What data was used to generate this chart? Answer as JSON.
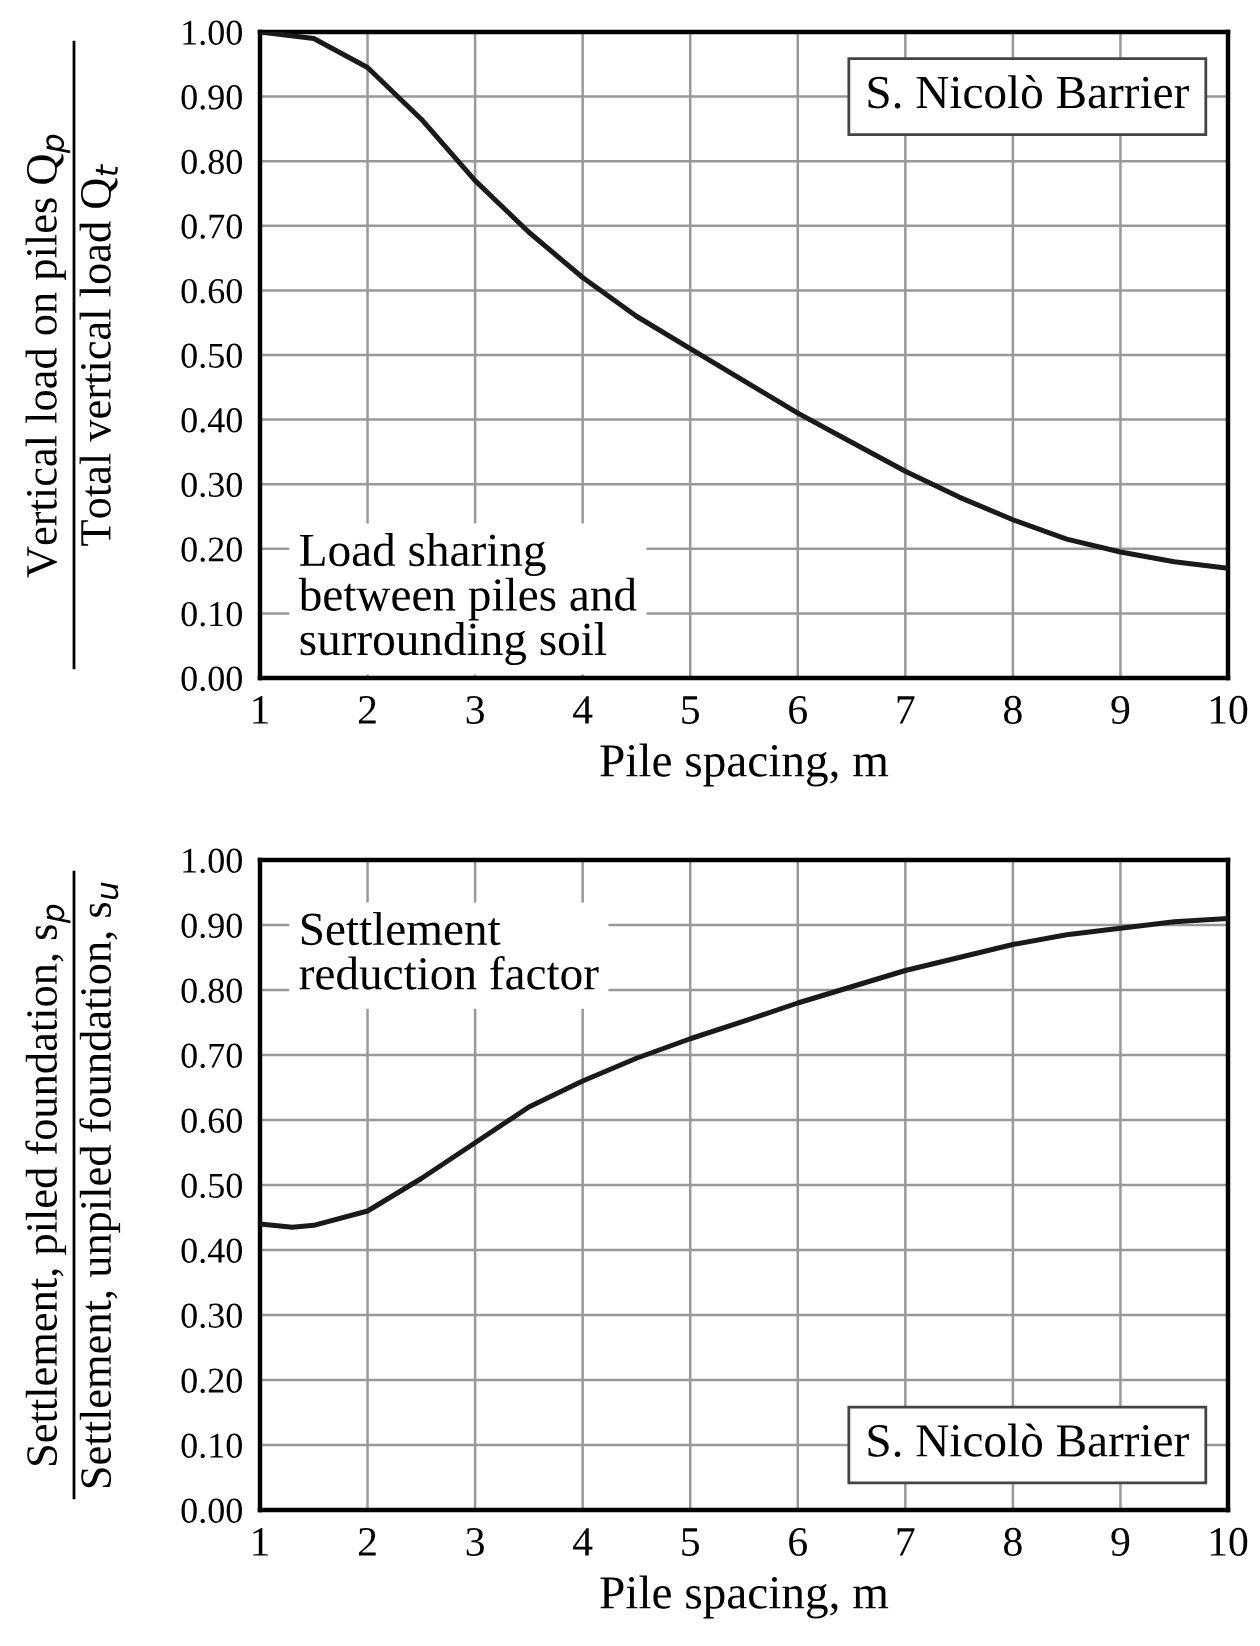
{
  "chart_data": [
    {
      "type": "line",
      "xlabel": "Pile spacing, m",
      "ylabel": "Vertical load on piles Q$_{p}$\nTotal vertical load Q$_{t}$",
      "annotations": [
        "S. Nicolò Barrier",
        "Load sharing\nbetween piles and\nsurrounding soil"
      ],
      "series": [
        {
          "color": "#1a1a1a",
          "x": [
            1,
            1.5,
            2,
            2.5,
            3,
            3.5,
            4,
            4.5,
            5,
            5.5,
            6,
            6.5,
            7,
            7.5,
            8,
            8.5,
            9,
            9.5,
            10
          ],
          "values": [
            1.0,
            0.99,
            0.945,
            0.865,
            0.77,
            0.69,
            0.62,
            0.56,
            0.51,
            0.46,
            0.41,
            0.365,
            0.32,
            0.28,
            0.245,
            0.215,
            0.195,
            0.18,
            0.17
          ]
        }
      ],
      "xlim": [
        1,
        10
      ],
      "xticks": [
        1,
        2,
        3,
        4,
        5,
        6,
        7,
        8,
        9,
        10
      ],
      "ylim": [
        0,
        1
      ],
      "yticks": [
        {
          "value": 0,
          "label": "0.00"
        },
        {
          "value": 0.1,
          "label": "0.10"
        },
        {
          "value": 0.2,
          "label": "0.20"
        },
        {
          "value": 0.3,
          "label": "0.30"
        },
        {
          "value": 0.4,
          "label": "0.40"
        },
        {
          "value": 0.5,
          "label": "0.50"
        },
        {
          "value": 0.6,
          "label": "0.60"
        },
        {
          "value": 0.7,
          "label": "0.70"
        },
        {
          "value": 0.8,
          "label": "0.80"
        },
        {
          "value": 0.9,
          "label": "0.90"
        },
        {
          "value": 1,
          "label": "1.00"
        }
      ],
      "grid": true
    },
    {
      "type": "line",
      "xlabel": "Pile spacing, m",
      "ylabel": "Settlement, piled foundation, s$_{p}$\nSettlement, unpiled foundation, s$_{u}$",
      "annotations": [
        "S. Nicolò Barrier",
        "Settlement\nreduction factor"
      ],
      "series": [
        {
          "color": "#1a1a1a",
          "x": [
            1,
            1.3,
            1.5,
            2,
            2.5,
            3,
            3.5,
            4,
            4.5,
            5,
            5.5,
            6,
            6.5,
            7,
            7.5,
            8,
            8.5,
            9,
            9.5,
            10
          ],
          "values": [
            0.44,
            0.435,
            0.438,
            0.46,
            0.51,
            0.565,
            0.62,
            0.66,
            0.695,
            0.725,
            0.752,
            0.78,
            0.805,
            0.83,
            0.85,
            0.87,
            0.885,
            0.895,
            0.905,
            0.91
          ]
        }
      ],
      "xlim": [
        1,
        10
      ],
      "xticks": [
        1,
        2,
        3,
        4,
        5,
        6,
        7,
        8,
        9,
        10
      ],
      "ylim": [
        0,
        1
      ],
      "yticks": [
        {
          "value": 0,
          "label": "0.00"
        },
        {
          "value": 0.1,
          "label": "0.10"
        },
        {
          "value": 0.2,
          "label": "0.20"
        },
        {
          "value": 0.3,
          "label": "0.30"
        },
        {
          "value": 0.4,
          "label": "0.40"
        },
        {
          "value": 0.5,
          "label": "0.50"
        },
        {
          "value": 0.6,
          "label": "0.60"
        },
        {
          "value": 0.7,
          "label": "0.70"
        },
        {
          "value": 0.8,
          "label": "0.80"
        },
        {
          "value": 0.9,
          "label": "0.90"
        },
        {
          "value": 1,
          "label": "1.00"
        }
      ],
      "grid": true
    }
  ]
}
